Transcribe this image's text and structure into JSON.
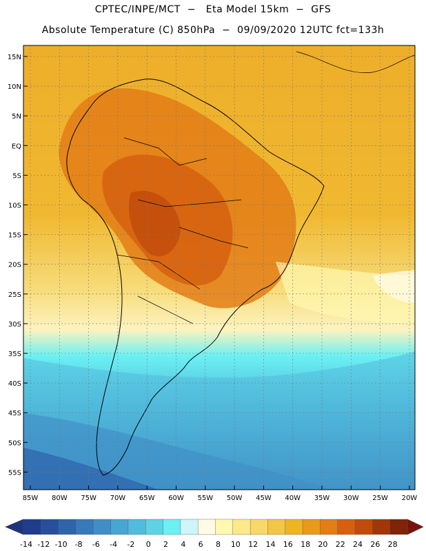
{
  "header": {
    "line1": "CPTEC/INPE/MCT  −   Eta Model 15km  −  GFS",
    "line2": "Absolute Temperature (C) 850hPa  −  09/09/2020 12UTC fct=133h"
  },
  "map": {
    "lat_labels": [
      "15N",
      "10N",
      "5N",
      "EQ",
      "5S",
      "10S",
      "15S",
      "20S",
      "25S",
      "30S",
      "35S",
      "40S",
      "45S",
      "50S",
      "55S"
    ],
    "lon_labels": [
      "85W",
      "80W",
      "75W",
      "70W",
      "65W",
      "60W",
      "55W",
      "50W",
      "45W",
      "40W",
      "35W",
      "30W",
      "25W",
      "20W"
    ]
  },
  "colorbar": {
    "labels": [
      "-14",
      "-12",
      "-10",
      "-8",
      "-6",
      "-4",
      "-2",
      "0",
      "2",
      "4",
      "6",
      "8",
      "10",
      "12",
      "14",
      "16",
      "18",
      "20",
      "22",
      "24",
      "26",
      "28"
    ],
    "colors": [
      "#1f3d8c",
      "#274f9c",
      "#2f64ac",
      "#3779b9",
      "#3f8fc6",
      "#48a6d2",
      "#52bcdc",
      "#5dd3e6",
      "#6bf0f3",
      "#cdf5fa",
      "#fffbe6",
      "#fff8b0",
      "#fbe98a",
      "#f8d869",
      "#f2c646",
      "#eeb424",
      "#e99a1d",
      "#e37d16",
      "#d6600f",
      "#c14b0b",
      "#a23608",
      "#7e2409"
    ],
    "low_end_color": "#1c3580",
    "high_end_color": "#7a1209"
  }
}
